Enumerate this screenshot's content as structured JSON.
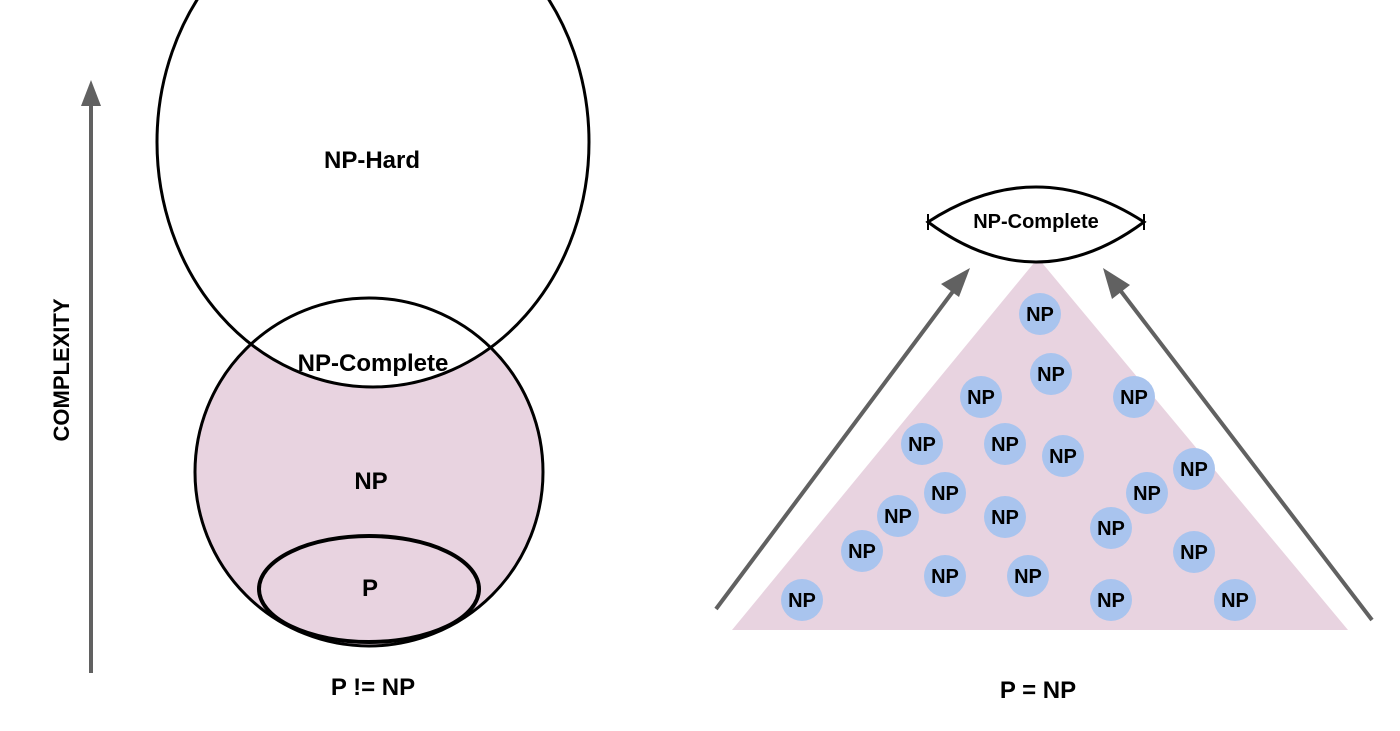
{
  "axis": {
    "label": "COMPLEXITY"
  },
  "left_diagram": {
    "np_hard_label": "NP-Hard",
    "np_complete_label": "NP-Complete",
    "np_label": "NP",
    "p_label": "P",
    "caption": "P != NP"
  },
  "right_diagram": {
    "apex_label": "NP-Complete",
    "node_label": "NP",
    "node_count": 21,
    "caption": "P = NP"
  },
  "colors": {
    "np_fill": "#e8d3e0",
    "node_fill": "#a9c4ee",
    "arrow": "#616161",
    "stroke": "#000000"
  }
}
